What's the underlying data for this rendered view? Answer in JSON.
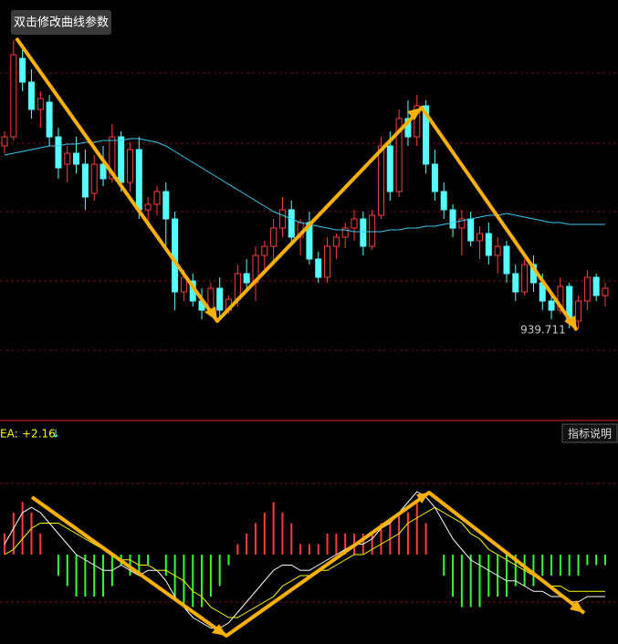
{
  "chart_data": [
    {
      "type": "candlestick",
      "button": "双击修改曲线参数",
      "annotation": "939.711",
      "ylim": [
        890,
        1120
      ],
      "up_color": "#ff3c3c",
      "down_color": "#54ffff",
      "ma_color": "#3cc8f0",
      "candles": [
        [
          1040,
          1048,
          1036,
          1045
        ],
        [
          1045,
          1098,
          1043,
          1090
        ],
        [
          1088,
          1096,
          1070,
          1075
        ],
        [
          1075,
          1082,
          1055,
          1060
        ],
        [
          1060,
          1070,
          1050,
          1066
        ],
        [
          1064,
          1068,
          1040,
          1045
        ],
        [
          1045,
          1050,
          1022,
          1028
        ],
        [
          1030,
          1040,
          1020,
          1036
        ],
        [
          1036,
          1045,
          1025,
          1030
        ],
        [
          1030,
          1038,
          1005,
          1012
        ],
        [
          1014,
          1035,
          1010,
          1030
        ],
        [
          1030,
          1040,
          1018,
          1022
        ],
        [
          1022,
          1052,
          1020,
          1045
        ],
        [
          1045,
          1048,
          1015,
          1020
        ],
        [
          1020,
          1042,
          1015,
          1038
        ],
        [
          1038,
          1045,
          1000,
          1005
        ],
        [
          1005,
          1012,
          995,
          1008
        ],
        [
          1008,
          1018,
          1002,
          1015
        ],
        [
          1015,
          1020,
          985,
          1000
        ],
        [
          1000,
          1004,
          950,
          960
        ],
        [
          960,
          972,
          955,
          968
        ],
        [
          966,
          970,
          952,
          955
        ],
        [
          955,
          962,
          945,
          950
        ],
        [
          950,
          965,
          948,
          962
        ],
        [
          962,
          968,
          945,
          950
        ],
        [
          950,
          958,
          948,
          956
        ],
        [
          956,
          975,
          952,
          970
        ],
        [
          970,
          978,
          960,
          965
        ],
        [
          965,
          985,
          955,
          980
        ],
        [
          980,
          988,
          970,
          985
        ],
        [
          985,
          1000,
          975,
          995
        ],
        [
          995,
          1012,
          990,
          1005
        ],
        [
          1005,
          1010,
          985,
          990
        ],
        [
          990,
          1000,
          980,
          998
        ],
        [
          998,
          1004,
          975,
          978
        ],
        [
          978,
          982,
          965,
          968
        ],
        [
          968,
          990,
          965,
          985
        ],
        [
          985,
          992,
          978,
          990
        ],
        [
          990,
          998,
          984,
          995
        ],
        [
          995,
          1005,
          988,
          1000
        ],
        [
          1000,
          1004,
          980,
          985
        ],
        [
          985,
          1005,
          983,
          1002
        ],
        [
          1002,
          1045,
          1000,
          1040
        ],
        [
          1040,
          1048,
          1010,
          1015
        ],
        [
          1015,
          1060,
          1012,
          1055
        ],
        [
          1055,
          1065,
          1040,
          1045
        ],
        [
          1045,
          1068,
          1040,
          1062
        ],
        [
          1062,
          1065,
          1025,
          1030
        ],
        [
          1030,
          1038,
          1010,
          1015
        ],
        [
          1015,
          1020,
          1000,
          1005
        ],
        [
          1005,
          1008,
          990,
          995
        ],
        [
          995,
          1005,
          980,
          1000
        ],
        [
          1000,
          1004,
          985,
          988
        ],
        [
          988,
          996,
          978,
          992
        ],
        [
          992,
          998,
          975,
          980
        ],
        [
          980,
          990,
          970,
          985
        ],
        [
          985,
          988,
          965,
          970
        ],
        [
          970,
          975,
          955,
          960
        ],
        [
          960,
          978,
          958,
          975
        ],
        [
          975,
          980,
          960,
          965
        ],
        [
          965,
          970,
          950,
          955
        ],
        [
          955,
          960,
          945,
          950
        ],
        [
          950,
          968,
          948,
          963
        ],
        [
          963,
          965,
          940,
          944
        ],
        [
          944,
          958,
          940,
          955
        ],
        [
          955,
          972,
          950,
          968
        ],
        [
          968,
          970,
          955,
          958
        ],
        [
          958,
          965,
          952,
          962
        ]
      ],
      "ma": [
        1035,
        1036,
        1037,
        1038,
        1039,
        1040,
        1040,
        1041,
        1041,
        1042,
        1042,
        1043,
        1043,
        1043,
        1044,
        1044,
        1043,
        1042,
        1040,
        1037,
        1034,
        1031,
        1028,
        1025,
        1022,
        1019,
        1016,
        1013,
        1010,
        1007,
        1004,
        1002,
        1000,
        998,
        997,
        996,
        995,
        994,
        994,
        993,
        993,
        993,
        993,
        994,
        994,
        995,
        995,
        996,
        996,
        997,
        998,
        999,
        1000,
        1001,
        1002,
        1002,
        1003,
        1002,
        1001,
        1000,
        999,
        998,
        998,
        997,
        997,
        997,
        997,
        997
      ]
    },
    {
      "type": "macd",
      "indicator_label": "EA:",
      "indicator_value": 2.16,
      "indicator_value_label": "+2.16",
      "indicator_arrow": "↓",
      "help_button": "指标说明",
      "ylim": [
        -16,
        24
      ],
      "dif_color": "#ffffff",
      "dea_color": "#ffff00",
      "up_color": "#ff3c3c",
      "down_color": "#32ff32",
      "dif": [
        2,
        5,
        8,
        9,
        8,
        6,
        4,
        2,
        0,
        -1,
        -2,
        -3,
        -3,
        -2,
        -3,
        -4,
        -3,
        -3,
        -5,
        -8,
        -10,
        -12,
        -13,
        -14,
        -14,
        -13,
        -11,
        -9,
        -7,
        -5,
        -3,
        -2,
        -2,
        -3,
        -3,
        -2,
        -1,
        0,
        1,
        2,
        2,
        3,
        5,
        6,
        8,
        10,
        12,
        11,
        9,
        6,
        3,
        1,
        -1,
        -2,
        -3,
        -4,
        -5,
        -5,
        -6,
        -7,
        -7,
        -8,
        -8,
        -9,
        -9,
        -8,
        -8,
        -8
      ],
      "dea": [
        0,
        1,
        3,
        5,
        6,
        6,
        6,
        5,
        4,
        3,
        2,
        1,
        0,
        -1,
        -1,
        -2,
        -2,
        -3,
        -3,
        -4,
        -5,
        -7,
        -8,
        -10,
        -11,
        -12,
        -12,
        -11,
        -10,
        -9,
        -8,
        -6,
        -5,
        -4,
        -4,
        -3,
        -3,
        -2,
        -1,
        0,
        0,
        1,
        2,
        3,
        4,
        6,
        7,
        8,
        9,
        8,
        7,
        6,
        4,
        3,
        1,
        0,
        -1,
        -2,
        -3,
        -4,
        -5,
        -6,
        -6,
        -7,
        -7,
        -7,
        -7,
        -7
      ],
      "histogram": [
        4,
        8,
        10,
        8,
        4,
        0,
        -4,
        -6,
        -8,
        -8,
        -8,
        -8,
        -6,
        -2,
        -4,
        -4,
        -2,
        0,
        -4,
        -8,
        -10,
        -10,
        -10,
        -8,
        -6,
        -2,
        2,
        4,
        6,
        8,
        10,
        8,
        6,
        2,
        2,
        2,
        4,
        4,
        4,
        4,
        4,
        4,
        6,
        6,
        8,
        8,
        10,
        6,
        0,
        -4,
        -8,
        -10,
        -10,
        -10,
        -8,
        -8,
        -8,
        -6,
        -6,
        -6,
        -4,
        -4,
        -4,
        -4,
        -4,
        -2,
        -2,
        -2
      ]
    }
  ]
}
